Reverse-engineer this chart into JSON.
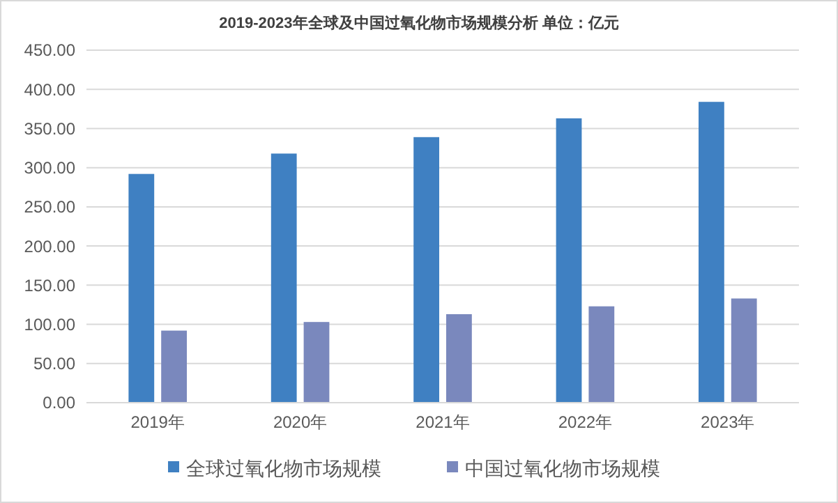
{
  "chart_data": {
    "type": "bar",
    "title": "2019-2023年全球及中国过氧化物市场规模分析  单位：亿元",
    "categories": [
      "2019年",
      "2020年",
      "2021年",
      "2022年",
      "2023年"
    ],
    "series": [
      {
        "name": "全球过氧化物市场规模",
        "color": "#3f80c2",
        "values": [
          292,
          318,
          339,
          363,
          384
        ]
      },
      {
        "name": "中国过氧化物市场规模",
        "color": "#7a88bd",
        "values": [
          92,
          103,
          113,
          123,
          133
        ]
      }
    ],
    "ylim": [
      0,
      450
    ],
    "yticks": [
      {
        "value": 0,
        "label": "0.00"
      },
      {
        "value": 50,
        "label": "50.00"
      },
      {
        "value": 100,
        "label": "100.00"
      },
      {
        "value": 150,
        "label": "150.00"
      },
      {
        "value": 200,
        "label": "200.00"
      },
      {
        "value": 250,
        "label": "250.00"
      },
      {
        "value": 300,
        "label": "300.00"
      },
      {
        "value": 350,
        "label": "350.00"
      },
      {
        "value": 400,
        "label": "400.00"
      },
      {
        "value": 450,
        "label": "450.00"
      }
    ],
    "grid": "y",
    "legend": "bottom"
  }
}
